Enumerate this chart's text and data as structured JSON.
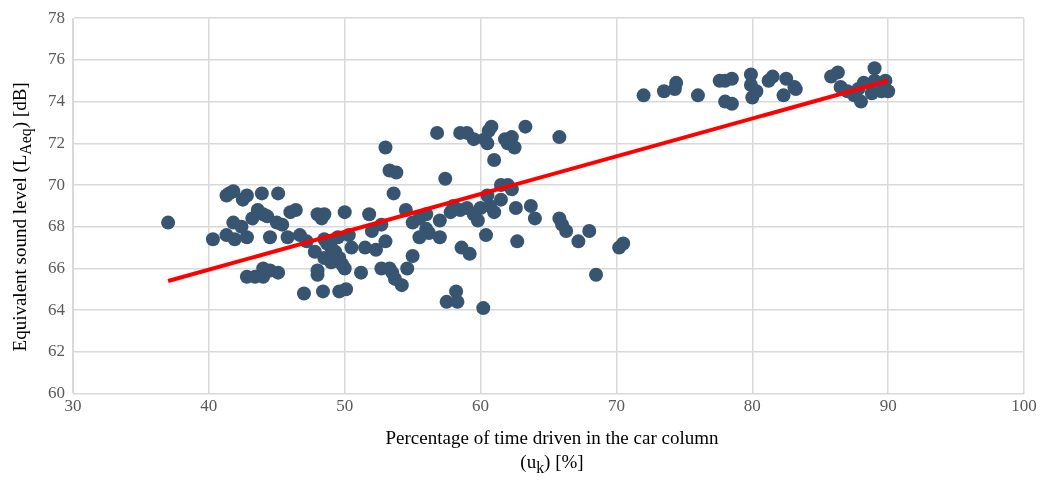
{
  "chart_data": {
    "type": "scatter",
    "xlabel": "Percentage of time driven in the car column\n(u$_{k}$) [%]",
    "ylabel": "Equivalent sound level (L$_{Aeq}$) [dB]",
    "xlim": [
      30,
      100
    ],
    "xticks": [
      30,
      40,
      50,
      60,
      70,
      80,
      90,
      100
    ],
    "ylim": [
      60,
      78
    ],
    "yticks": [
      60,
      62,
      64,
      66,
      68,
      70,
      72,
      74,
      76,
      78
    ],
    "grid": true,
    "legend": false,
    "marker": "circle",
    "series": [
      {
        "type": "scatter",
        "color": "#375471",
        "x": [
          72,
          73.5,
          74.3,
          74.4,
          76,
          77.6,
          78,
          78.5,
          78,
          78.5,
          79.9,
          79.9,
          80,
          80.3,
          81.2,
          81.5,
          82.3,
          82.5,
          83.1,
          83.2,
          85.8,
          86.3,
          86.5,
          87,
          87.5,
          87.8,
          88,
          88.8,
          89,
          89,
          89.5,
          89.8,
          90,
          88.2,
          56.8,
          58.5,
          59,
          59.5,
          60.3,
          60.5,
          60.6,
          60.8,
          61.8,
          62,
          62.3,
          62.5,
          63.3,
          65.8,
          61,
          53,
          53.3,
          53.8,
          57.4,
          53.6,
          61.5,
          62,
          62.3,
          60.5,
          63.7,
          62.6,
          65.8,
          66,
          66.3,
          68,
          67.2,
          70.2,
          70.5,
          68.5,
          64,
          60.4,
          62.7,
          58.6,
          59.2,
          57.5,
          58.2,
          58.3,
          60.2,
          56.2,
          57,
          55,
          54.6,
          54.2,
          53.7,
          54.5,
          55,
          55.5,
          56,
          57,
          57.8,
          58,
          58.5,
          59,
          59.5,
          59.8,
          60,
          60.7,
          61,
          61.5,
          56,
          55.5,
          37,
          40.3,
          41.3,
          41.5,
          41.8,
          42.5,
          42.8,
          43.9,
          45.1,
          41.8,
          41.3,
          41.9,
          42.4,
          42.8,
          43.2,
          43.6,
          44,
          44.3,
          44.5,
          45,
          45.4,
          45.8,
          46,
          46.4,
          46.7,
          47.2,
          42.8,
          43.4,
          44,
          44.5,
          44,
          45.1,
          47,
          48,
          48,
          48.4,
          48,
          48.3,
          48.5,
          48.5,
          49,
          49.3,
          49.5,
          49.6,
          49.8,
          50,
          50,
          50.3,
          50.5,
          49.6,
          50.1,
          51.2,
          51.5,
          51.8,
          52,
          52.3,
          52.7,
          52.7,
          53,
          53.3,
          53.5,
          49,
          48.5,
          47.8,
          48.7
        ],
        "values": [
          74.3,
          74.5,
          74.6,
          74.9,
          74.3,
          75,
          75,
          75.1,
          74,
          73.9,
          75.3,
          74.8,
          74.2,
          74.5,
          75,
          75.2,
          74.3,
          75.1,
          74.7,
          74.6,
          75.2,
          75.4,
          74.7,
          74.5,
          74.3,
          74.6,
          74,
          74.4,
          75.6,
          75,
          74.5,
          75,
          74.5,
          74.9,
          72.5,
          72.5,
          72.5,
          72.2,
          72.2,
          72,
          72.6,
          72.8,
          72.2,
          72,
          72.3,
          71.8,
          72.8,
          72.3,
          71.2,
          71.8,
          70.7,
          70.6,
          70.3,
          69.6,
          70,
          70,
          69.8,
          69.5,
          69,
          68.9,
          68.4,
          68.1,
          67.8,
          67.8,
          67.3,
          67,
          67.2,
          65.7,
          68.4,
          67.6,
          67.3,
          67,
          66.7,
          64.4,
          64.9,
          64.4,
          64.1,
          67.7,
          67.5,
          66.6,
          66,
          65.2,
          65.5,
          68.8,
          68.2,
          68.4,
          68.6,
          68.3,
          68.7,
          69,
          68.8,
          68.9,
          68.6,
          68.3,
          68.9,
          69,
          68.7,
          69.3,
          67.9,
          67.5,
          68.2,
          67.4,
          69.5,
          69.6,
          69.7,
          69.3,
          69.5,
          69.6,
          69.6,
          68.2,
          67.6,
          67.4,
          68,
          67.5,
          68.4,
          68.8,
          68.6,
          68.5,
          67.5,
          68.2,
          68.1,
          67.5,
          68.7,
          68.8,
          67.6,
          67.3,
          65.6,
          65.6,
          66,
          65.9,
          65.6,
          65.8,
          64.8,
          65.7,
          65.9,
          64.9,
          68.6,
          68.4,
          68.6,
          67.4,
          67,
          66.8,
          67.5,
          66.5,
          66.2,
          66,
          68.7,
          67.6,
          67,
          64.9,
          65,
          65.8,
          67,
          68.6,
          67.8,
          66.9,
          66,
          68.1,
          67.3,
          66,
          65.8,
          66.3,
          66.5,
          66.8,
          67.2
        ]
      },
      {
        "type": "line",
        "color": "#ff0000",
        "marker": "none",
        "x": [
          37,
          90
        ],
        "values": [
          65.4,
          75
        ]
      }
    ]
  }
}
